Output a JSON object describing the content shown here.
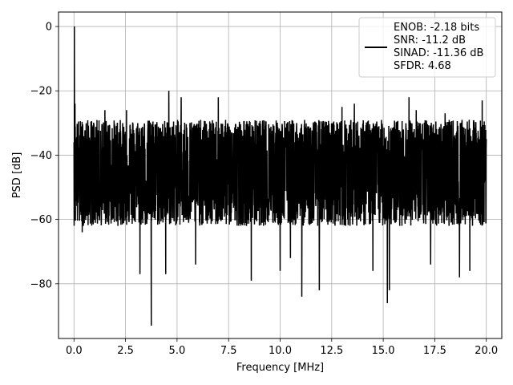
{
  "chart_data": {
    "type": "line",
    "title": "",
    "xlabel": "Frequency [MHz]",
    "ylabel": "PSD [dB]",
    "xlim": [
      -0.75,
      20.75
    ],
    "ylim": [
      -97,
      4.5
    ],
    "xticks": [
      0.0,
      2.5,
      5.0,
      7.5,
      10.0,
      12.5,
      15.0,
      17.5,
      20.0
    ],
    "xtick_labels": [
      "0.0",
      "2.5",
      "5.0",
      "7.5",
      "10.0",
      "12.5",
      "15.0",
      "17.5",
      "20.0"
    ],
    "yticks": [
      0,
      -20,
      -40,
      -60,
      -80
    ],
    "ytick_labels": [
      "0",
      "−20",
      "−40",
      "−60",
      "−80"
    ],
    "grid": true,
    "legend_position": "top-right",
    "series": [
      {
        "name": "ENOB: -2.18 bits\nSNR: -11.2 dB\nSINAD: -11.36 dB\nSFDR: 4.68",
        "color": "#000000",
        "noise_floor_upper_db": -29,
        "noise_floor_lower_db": -62,
        "noise_floor_mean_db": -45,
        "points": [
          {
            "x": 0.0,
            "y": -36
          },
          {
            "x": 0.02,
            "y": 0
          },
          {
            "x": 0.05,
            "y": -24
          },
          {
            "x": 0.1,
            "y": -40
          },
          {
            "x": 0.4,
            "y": -64
          },
          {
            "x": 1.5,
            "y": -26
          },
          {
            "x": 2.55,
            "y": -26
          },
          {
            "x": 3.2,
            "y": -77
          },
          {
            "x": 3.75,
            "y": -93
          },
          {
            "x": 4.45,
            "y": -77
          },
          {
            "x": 4.6,
            "y": -20
          },
          {
            "x": 5.2,
            "y": -22
          },
          {
            "x": 5.9,
            "y": -74
          },
          {
            "x": 7.0,
            "y": -22
          },
          {
            "x": 8.6,
            "y": -79
          },
          {
            "x": 10.0,
            "y": -76
          },
          {
            "x": 10.5,
            "y": -72
          },
          {
            "x": 11.05,
            "y": -84
          },
          {
            "x": 11.9,
            "y": -82
          },
          {
            "x": 13.0,
            "y": -25
          },
          {
            "x": 13.6,
            "y": -24
          },
          {
            "x": 14.5,
            "y": -76
          },
          {
            "x": 15.2,
            "y": -86
          },
          {
            "x": 15.3,
            "y": -82
          },
          {
            "x": 16.25,
            "y": -22
          },
          {
            "x": 16.6,
            "y": -26
          },
          {
            "x": 17.3,
            "y": -74
          },
          {
            "x": 18.0,
            "y": -27
          },
          {
            "x": 18.7,
            "y": -78
          },
          {
            "x": 19.2,
            "y": -76
          },
          {
            "x": 19.8,
            "y": -23
          },
          {
            "x": 20.0,
            "y": -35
          }
        ]
      }
    ]
  }
}
